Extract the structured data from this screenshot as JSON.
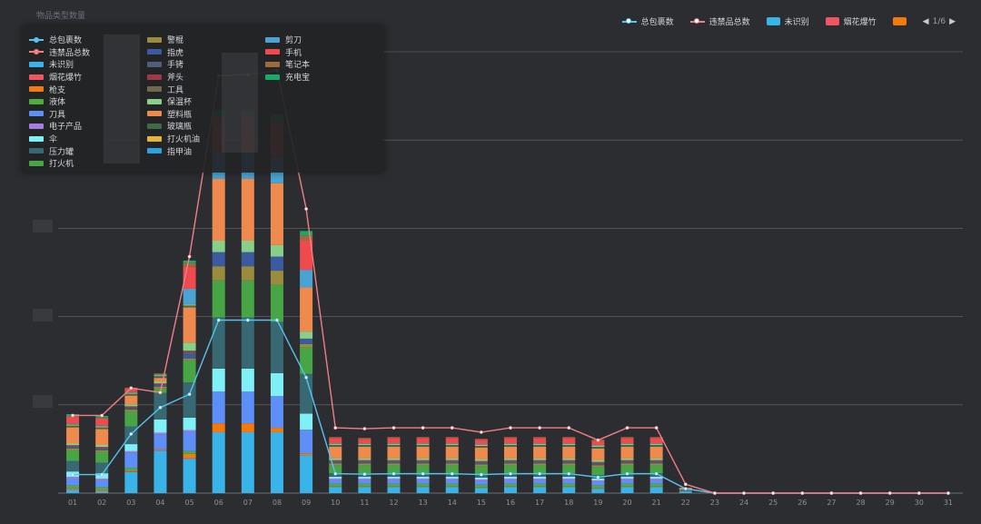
{
  "chart_data": {
    "type": "bar",
    "title": "物品类型数量",
    "categories": [
      "01",
      "02",
      "03",
      "04",
      "05",
      "06",
      "07",
      "08",
      "09",
      "10",
      "11",
      "12",
      "13",
      "14",
      "15",
      "16",
      "17",
      "18",
      "19",
      "20",
      "21",
      "22",
      "23",
      "24",
      "25",
      "26",
      "27",
      "28",
      "29",
      "30",
      "31"
    ],
    "ylim": [
      0,
      5000
    ],
    "grid": true,
    "legend_position": "top-right",
    "bar_series": [
      {
        "name": "未识别",
        "color": "#3ab4e8",
        "values": [
          40,
          20,
          240,
          480,
          390,
          690,
          690,
          690,
          430,
          70,
          70,
          70,
          70,
          70,
          60,
          70,
          70,
          70,
          50,
          70,
          70,
          10,
          0,
          0,
          0,
          0,
          0,
          0,
          0,
          0,
          0
        ]
      },
      {
        "name": "烟花爆竹",
        "color": "#ef5663",
        "values": [
          5,
          5,
          5,
          5,
          5,
          0,
          0,
          0,
          0,
          5,
          5,
          5,
          5,
          5,
          5,
          5,
          5,
          5,
          5,
          5,
          5,
          0,
          0,
          0,
          0,
          0,
          0,
          0,
          0,
          0,
          0
        ]
      },
      {
        "name": "枪支",
        "color": "#f47a0c",
        "values": [
          10,
          10,
          10,
          10,
          50,
          100,
          100,
          50,
          20,
          0,
          0,
          0,
          0,
          0,
          0,
          0,
          0,
          0,
          0,
          0,
          0,
          0,
          0,
          0,
          0,
          0,
          0,
          0,
          0,
          0,
          0
        ]
      },
      {
        "name": "液体",
        "color": "#4fae3b",
        "values": [
          30,
          30,
          30,
          0,
          30,
          0,
          0,
          0,
          0,
          30,
          30,
          30,
          30,
          30,
          30,
          30,
          30,
          30,
          30,
          30,
          30,
          5,
          0,
          0,
          0,
          0,
          0,
          0,
          0,
          0,
          0
        ]
      },
      {
        "name": "刀具",
        "color": "#5d8ff7",
        "values": [
          80,
          80,
          170,
          170,
          220,
          360,
          360,
          360,
          270,
          40,
          40,
          40,
          40,
          40,
          40,
          40,
          40,
          40,
          40,
          40,
          40,
          10,
          0,
          0,
          0,
          0,
          0,
          0,
          0,
          0,
          0
        ]
      },
      {
        "name": "电子产品",
        "color": "#a77ce0",
        "values": [
          20,
          20,
          20,
          20,
          20,
          0,
          0,
          0,
          0,
          20,
          20,
          20,
          20,
          20,
          20,
          20,
          20,
          20,
          20,
          20,
          20,
          0,
          0,
          0,
          0,
          0,
          0,
          0,
          0,
          0,
          0
        ]
      },
      {
        "name": "伞",
        "color": "#7ff0f5",
        "values": [
          60,
          60,
          80,
          150,
          140,
          260,
          260,
          260,
          180,
          20,
          20,
          20,
          20,
          20,
          20,
          20,
          20,
          20,
          20,
          20,
          20,
          0,
          0,
          0,
          0,
          0,
          0,
          0,
          0,
          0,
          0
        ]
      },
      {
        "name": "压力罐",
        "color": "#386872",
        "values": [
          120,
          120,
          200,
          300,
          400,
          580,
          580,
          580,
          450,
          40,
          40,
          40,
          40,
          40,
          40,
          40,
          40,
          40,
          40,
          40,
          40,
          10,
          0,
          0,
          0,
          0,
          0,
          0,
          0,
          0,
          0
        ]
      },
      {
        "name": "打火机",
        "color": "#48a546",
        "values": [
          120,
          120,
          170,
          50,
          250,
          420,
          420,
          420,
          300,
          90,
          90,
          90,
          90,
          90,
          90,
          90,
          90,
          90,
          90,
          90,
          90,
          5,
          0,
          0,
          0,
          0,
          0,
          0,
          0,
          0,
          0
        ]
      },
      {
        "name": "警棍",
        "color": "#9b8c3d",
        "values": [
          20,
          20,
          20,
          20,
          20,
          160,
          160,
          160,
          40,
          20,
          20,
          20,
          20,
          20,
          20,
          20,
          20,
          20,
          20,
          20,
          20,
          0,
          0,
          0,
          0,
          0,
          0,
          0,
          0,
          0,
          0
        ]
      },
      {
        "name": "指虎",
        "color": "#3b5aa0",
        "values": [
          10,
          10,
          10,
          10,
          40,
          160,
          160,
          160,
          60,
          10,
          10,
          10,
          10,
          10,
          10,
          10,
          10,
          10,
          10,
          10,
          10,
          0,
          0,
          0,
          0,
          0,
          0,
          0,
          0,
          0,
          0
        ]
      },
      {
        "name": "手铐",
        "color": "#4f5f77",
        "values": [
          10,
          10,
          10,
          10,
          30,
          0,
          0,
          0,
          0,
          10,
          10,
          10,
          10,
          10,
          10,
          10,
          10,
          10,
          10,
          10,
          10,
          0,
          0,
          0,
          0,
          0,
          0,
          0,
          0,
          0,
          0
        ]
      },
      {
        "name": "斧头",
        "color": "#9c3b48",
        "values": [
          10,
          10,
          10,
          10,
          10,
          0,
          0,
          0,
          0,
          10,
          10,
          10,
          10,
          10,
          10,
          10,
          10,
          10,
          10,
          10,
          10,
          0,
          0,
          0,
          0,
          0,
          0,
          0,
          0,
          0,
          0
        ]
      },
      {
        "name": "工具",
        "color": "#6f6a4f",
        "values": [
          10,
          10,
          10,
          10,
          10,
          0,
          0,
          0,
          0,
          10,
          10,
          10,
          10,
          10,
          10,
          10,
          10,
          10,
          10,
          10,
          10,
          0,
          0,
          0,
          0,
          0,
          0,
          0,
          0,
          0,
          0
        ]
      },
      {
        "name": "保温杯",
        "color": "#88d08a",
        "values": [
          20,
          20,
          20,
          20,
          90,
          130,
          130,
          130,
          80,
          20,
          20,
          20,
          20,
          20,
          20,
          20,
          20,
          20,
          20,
          20,
          20,
          0,
          0,
          0,
          0,
          0,
          0,
          0,
          0,
          0,
          0
        ]
      },
      {
        "name": "塑料瓶",
        "color": "#ef8a4f",
        "values": [
          180,
          180,
          100,
          40,
          400,
          700,
          700,
          700,
          500,
          130,
          130,
          130,
          130,
          130,
          130,
          130,
          130,
          130,
          130,
          130,
          130,
          20,
          0,
          0,
          0,
          0,
          0,
          0,
          0,
          0,
          0
        ]
      },
      {
        "name": "玻璃瓶",
        "color": "#3d6b44",
        "values": [
          20,
          20,
          20,
          20,
          20,
          0,
          0,
          0,
          0,
          20,
          20,
          20,
          20,
          20,
          20,
          20,
          20,
          20,
          20,
          20,
          20,
          0,
          0,
          0,
          0,
          0,
          0,
          0,
          0,
          0,
          0
        ]
      },
      {
        "name": "打火机油",
        "color": "#e4b440",
        "values": [
          10,
          10,
          10,
          10,
          10,
          0,
          0,
          0,
          0,
          10,
          10,
          10,
          10,
          10,
          10,
          10,
          10,
          10,
          10,
          10,
          10,
          0,
          0,
          0,
          0,
          0,
          0,
          0,
          0,
          0,
          0
        ]
      },
      {
        "name": "指甲油",
        "color": "#2aa4e0",
        "values": [
          10,
          10,
          10,
          10,
          10,
          0,
          0,
          0,
          0,
          10,
          10,
          10,
          10,
          10,
          10,
          10,
          10,
          10,
          10,
          10,
          10,
          0,
          0,
          0,
          0,
          0,
          0,
          0,
          0,
          0,
          0
        ]
      },
      {
        "name": "剪刀",
        "color": "#4aa3d2",
        "values": [
          0,
          0,
          0,
          0,
          170,
          300,
          300,
          300,
          200,
          0,
          0,
          0,
          0,
          0,
          0,
          0,
          0,
          0,
          0,
          0,
          0,
          0,
          0,
          0,
          0,
          0,
          0,
          0,
          0,
          0,
          0
        ]
      },
      {
        "name": "手机",
        "color": "#ef4a4e",
        "values": [
          80,
          80,
          40,
          0,
          250,
          400,
          400,
          400,
          330,
          60,
          50,
          60,
          60,
          60,
          50,
          60,
          60,
          60,
          50,
          60,
          60,
          0,
          0,
          0,
          0,
          0,
          0,
          0,
          0,
          0,
          0
        ]
      },
      {
        "name": "笔记本",
        "color": "#a06b3c",
        "values": [
          10,
          10,
          10,
          10,
          40,
          0,
          0,
          0,
          60,
          10,
          10,
          10,
          10,
          10,
          10,
          10,
          10,
          10,
          10,
          10,
          10,
          0,
          0,
          0,
          0,
          0,
          0,
          0,
          0,
          0,
          0
        ]
      },
      {
        "name": "充电宝",
        "color": "#19a866",
        "values": [
          20,
          20,
          0,
          0,
          30,
          80,
          80,
          80,
          50,
          0,
          0,
          0,
          0,
          0,
          0,
          0,
          0,
          0,
          0,
          0,
          0,
          0,
          0,
          0,
          0,
          0,
          0,
          0,
          0,
          0,
          0
        ]
      }
    ],
    "line_series": [
      {
        "name": "总包裹数",
        "color": "#54c4f0",
        "values": [
          210,
          210,
          670,
          970,
          1120,
          1960,
          1960,
          1960,
          1310,
          220,
          215,
          220,
          220,
          220,
          210,
          220,
          220,
          220,
          180,
          220,
          220,
          50,
          0,
          0,
          0,
          0,
          0,
          0,
          0,
          0,
          0
        ]
      },
      {
        "name": "违禁品总数",
        "color": "#f07f86",
        "values": [
          880,
          880,
          1190,
          1140,
          2680,
          4730,
          4740,
          4790,
          3220,
          740,
          730,
          740,
          740,
          740,
          690,
          740,
          740,
          740,
          600,
          740,
          740,
          100,
          0,
          0,
          0,
          0,
          0,
          0,
          0,
          0,
          0
        ]
      }
    ],
    "top_legend": {
      "items": [
        {
          "name": "总包裹数",
          "kind": "line",
          "color": "#54c4f0"
        },
        {
          "name": "违禁品总数",
          "kind": "line",
          "color": "#f07f86"
        },
        {
          "name": "未识别",
          "kind": "rect",
          "color": "#3ab4e8"
        },
        {
          "name": "烟花爆竹",
          "kind": "rect",
          "color": "#ef5663"
        },
        {
          "name": "",
          "kind": "rect",
          "color": "#f47a0c"
        }
      ],
      "page": "1/6"
    },
    "legend_panel": {
      "items": [
        {
          "name": "总包裹数",
          "kind": "line",
          "color": "#54c4f0"
        },
        {
          "name": "警棍",
          "kind": "rect",
          "color": "#9b8c3d"
        },
        {
          "name": "剪刀",
          "kind": "rect",
          "color": "#4aa3d2"
        },
        {
          "name": "违禁品总数",
          "kind": "line",
          "color": "#f07f86"
        },
        {
          "name": "指虎",
          "kind": "rect",
          "color": "#3b5aa0"
        },
        {
          "name": "手机",
          "kind": "rect",
          "color": "#ef4a4e"
        },
        {
          "name": "未识别",
          "kind": "rect",
          "color": "#3ab4e8"
        },
        {
          "name": "手铐",
          "kind": "rect",
          "color": "#4f5f77"
        },
        {
          "name": "笔记本",
          "kind": "rect",
          "color": "#a06b3c"
        },
        {
          "name": "烟花爆竹",
          "kind": "rect",
          "color": "#ef5663"
        },
        {
          "name": "斧头",
          "kind": "rect",
          "color": "#9c3b48"
        },
        {
          "name": "充电宝",
          "kind": "rect",
          "color": "#19a866"
        },
        {
          "name": "枪支",
          "kind": "rect",
          "color": "#f47a0c"
        },
        {
          "name": "工具",
          "kind": "rect",
          "color": "#6f6a4f"
        },
        {
          "name": "",
          "kind": "none",
          "color": ""
        },
        {
          "name": "液体",
          "kind": "rect",
          "color": "#4fae3b"
        },
        {
          "name": "保温杯",
          "kind": "rect",
          "color": "#88d08a"
        },
        {
          "name": "",
          "kind": "none",
          "color": ""
        },
        {
          "name": "刀具",
          "kind": "rect",
          "color": "#5d8ff7"
        },
        {
          "name": "塑料瓶",
          "kind": "rect",
          "color": "#ef8a4f"
        },
        {
          "name": "",
          "kind": "none",
          "color": ""
        },
        {
          "name": "电子产品",
          "kind": "rect",
          "color": "#a77ce0"
        },
        {
          "name": "玻璃瓶",
          "kind": "rect",
          "color": "#3d6b44"
        },
        {
          "name": "",
          "kind": "none",
          "color": ""
        },
        {
          "name": "伞",
          "kind": "rect",
          "color": "#7ff0f5"
        },
        {
          "name": "打火机油",
          "kind": "rect",
          "color": "#e4b440"
        },
        {
          "name": "",
          "kind": "none",
          "color": ""
        },
        {
          "name": "压力罐",
          "kind": "rect",
          "color": "#386872"
        },
        {
          "name": "指甲油",
          "kind": "rect",
          "color": "#2aa4e0"
        },
        {
          "name": "",
          "kind": "none",
          "color": ""
        },
        {
          "name": "打火机",
          "kind": "rect",
          "color": "#48a546"
        }
      ]
    }
  }
}
